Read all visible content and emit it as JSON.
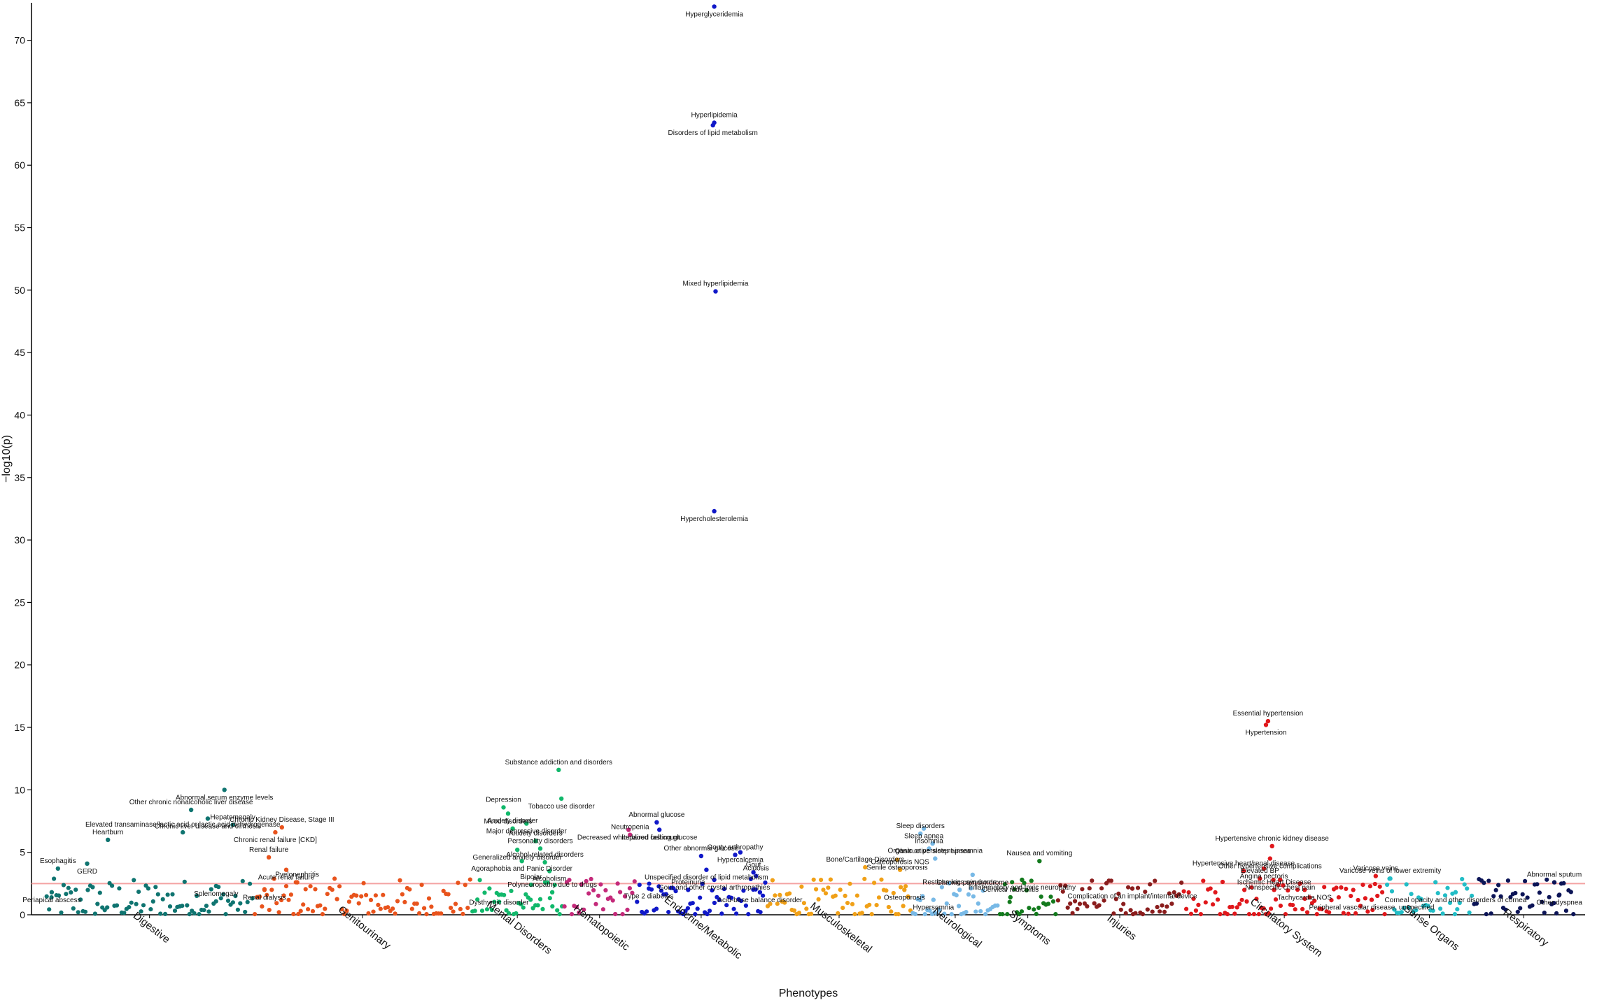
{
  "chart_data": {
    "type": "scatter",
    "title": "",
    "xlabel": "Phenotypes",
    "ylabel": "−log10(p)",
    "ylim": [
      0,
      73
    ],
    "yticks": [
      0,
      5,
      10,
      15,
      20,
      25,
      30,
      35,
      40,
      45,
      50,
      55,
      60,
      65,
      70
    ],
    "significance_threshold": 2.5,
    "threshold_color": "#f4a3a3",
    "grid": false,
    "legend": "none",
    "categories": [
      {
        "name": "Digestive",
        "color": "#0f7470",
        "n": 86
      },
      {
        "name": "Genitourinary",
        "color": "#e8531c",
        "n": 90
      },
      {
        "name": "Mental Disorders",
        "color": "#11b86b",
        "n": 38
      },
      {
        "name": "Hematopoietic",
        "color": "#c42a7a",
        "n": 30
      },
      {
        "name": "Endocrine/Metabolic",
        "color": "#1018c8",
        "n": 54
      },
      {
        "name": "Musculoskeletal",
        "color": "#f0a017",
        "n": 60
      },
      {
        "name": "Neurological",
        "color": "#78b9e6",
        "n": 36
      },
      {
        "name": "Symptoms",
        "color": "#137a1d",
        "n": 24
      },
      {
        "name": "Injuries",
        "color": "#8a1d1d",
        "n": 52
      },
      {
        "name": "Circulatory System",
        "color": "#e0171b",
        "n": 84
      },
      {
        "name": "Sense Organs",
        "color": "#22bdc6",
        "n": 36
      },
      {
        "name": "Respiratory",
        "color": "#0c1456",
        "n": 42
      }
    ],
    "labeled_points": [
      {
        "label": "Esophagitis",
        "category": "Digestive",
        "pos": 0.06,
        "y": 3.7
      },
      {
        "label": "GERD",
        "category": "Digestive",
        "pos": 0.2,
        "y": 4.1
      },
      {
        "label": "Heartburn",
        "category": "Digestive",
        "pos": 0.3,
        "y": 6.0
      },
      {
        "label": "Periapical abscess",
        "category": "Digestive",
        "pos": 0.03,
        "y": 1.8
      },
      {
        "label": "Other chronic nonalcoholic liver disease",
        "category": "Digestive",
        "pos": 0.7,
        "y": 8.4
      },
      {
        "label": "Chronic liver disease and cirrhosis",
        "category": "Digestive",
        "pos": 0.78,
        "y": 7.7
      },
      {
        "label": "Elevated transaminase/lactic acid or lactic acid dehydrogenase",
        "category": "Digestive",
        "pos": 0.66,
        "y": 6.6
      },
      {
        "label": "Abnormal serum enzyme levels",
        "category": "Digestive",
        "pos": 0.86,
        "y": 10.0
      },
      {
        "label": "Hepatomegaly",
        "category": "Digestive",
        "pos": 0.9,
        "y": 7.2
      },
      {
        "label": "Splenomegaly",
        "category": "Digestive",
        "pos": 0.82,
        "y": 2.3
      },
      {
        "label": "Chronic Kidney Disease, Stage III",
        "category": "Genitourinary",
        "pos": 0.13,
        "y": 7.0
      },
      {
        "label": "Chronic renal failure [CKD]",
        "category": "Genitourinary",
        "pos": 0.1,
        "y": 6.6
      },
      {
        "label": "Renal failure",
        "category": "Genitourinary",
        "pos": 0.07,
        "y": 4.6
      },
      {
        "label": "Acute renal failure",
        "category": "Genitourinary",
        "pos": 0.15,
        "y": 3.6
      },
      {
        "label": "Pyelonephritis",
        "category": "Genitourinary",
        "pos": 0.2,
        "y": 2.6
      },
      {
        "label": "Renal dialysis",
        "category": "Genitourinary",
        "pos": 0.05,
        "y": 2.0
      },
      {
        "label": "Depression",
        "category": "Mental Disorders",
        "pos": 0.35,
        "y": 8.6
      },
      {
        "label": "Mood disorders",
        "category": "Mental Disorders",
        "pos": 0.4,
        "y": 8.1
      },
      {
        "label": "Anxiety disorder",
        "category": "Mental Disorders",
        "pos": 0.45,
        "y": 6.9
      },
      {
        "label": "Major depressive disorder",
        "category": "Mental Disorders",
        "pos": 0.6,
        "y": 7.3
      },
      {
        "label": "Substance addiction and disorders",
        "category": "Mental Disorders",
        "pos": 0.95,
        "y": 11.6
      },
      {
        "label": "Tobacco use disorder",
        "category": "Mental Disorders",
        "pos": 0.98,
        "y": 9.3
      },
      {
        "label": "Anxiety disorders",
        "category": "Mental Disorders",
        "pos": 0.7,
        "y": 5.9
      },
      {
        "label": "Generalized anxiety disorder",
        "category": "Mental Disorders",
        "pos": 0.5,
        "y": 5.2
      },
      {
        "label": "Personality disorders",
        "category": "Mental Disorders",
        "pos": 0.75,
        "y": 5.3
      },
      {
        "label": "Agoraphobia and Panic Disorder",
        "category": "Mental Disorders",
        "pos": 0.55,
        "y": 4.3
      },
      {
        "label": "Alcohol-related disorders",
        "category": "Mental Disorders",
        "pos": 0.8,
        "y": 4.2
      },
      {
        "label": "Alcoholism",
        "category": "Mental Disorders",
        "pos": 0.85,
        "y": 3.5
      },
      {
        "label": "Bipolar",
        "category": "Mental Disorders",
        "pos": 0.65,
        "y": 2.4
      },
      {
        "label": "Dysthymic disorder",
        "category": "Mental Disorders",
        "pos": 0.3,
        "y": 1.6
      },
      {
        "label": "Polyneuropathy due to drugs",
        "category": "Mental Disorders",
        "pos": 0.88,
        "y": 1.8
      },
      {
        "label": "Decreased white blood cell count",
        "category": "Hematopoietic",
        "pos": 0.9,
        "y": 6.8
      },
      {
        "label": "Neutropenia",
        "category": "Hematopoietic",
        "pos": 0.92,
        "y": 6.4
      },
      {
        "label": "Hyperglyceridemia",
        "category": "Endocrine/Metabolic",
        "pos": 0.6,
        "y": 72.7
      },
      {
        "label": "Hyperlipidemia",
        "category": "Endocrine/Metabolic",
        "pos": 0.6,
        "y": 63.4
      },
      {
        "label": "Disorders of lipid metabolism",
        "category": "Endocrine/Metabolic",
        "pos": 0.59,
        "y": 63.2
      },
      {
        "label": "Mixed hyperlipidemia",
        "category": "Endocrine/Metabolic",
        "pos": 0.61,
        "y": 49.9
      },
      {
        "label": "Hypercholesterolemia",
        "category": "Endocrine/Metabolic",
        "pos": 0.6,
        "y": 32.3
      },
      {
        "label": "Abnormal glucose",
        "category": "Endocrine/Metabolic",
        "pos": 0.16,
        "y": 7.4
      },
      {
        "label": "Impaired fasting glucose",
        "category": "Endocrine/Metabolic",
        "pos": 0.18,
        "y": 6.8
      },
      {
        "label": "Other abnormal glucose",
        "category": "Endocrine/Metabolic",
        "pos": 0.5,
        "y": 4.7
      },
      {
        "label": "Hypercalcemia",
        "category": "Endocrine/Metabolic",
        "pos": 0.8,
        "y": 5.0
      },
      {
        "label": "Gouty arthropathy",
        "category": "Endocrine/Metabolic",
        "pos": 0.76,
        "y": 4.8
      },
      {
        "label": "Unspecified disorder of lipid metabolism",
        "category": "Endocrine/Metabolic",
        "pos": 0.54,
        "y": 3.6
      },
      {
        "label": "Gout",
        "category": "Endocrine/Metabolic",
        "pos": 0.9,
        "y": 3.4
      },
      {
        "label": "Gout and other crystal arthropathies",
        "category": "Endocrine/Metabolic",
        "pos": 0.6,
        "y": 2.8
      },
      {
        "label": "Acidosis",
        "category": "Endocrine/Metabolic",
        "pos": 0.92,
        "y": 3.1
      },
      {
        "label": "Type 2 diabetes",
        "category": "Endocrine/Metabolic",
        "pos": 0.1,
        "y": 2.1
      },
      {
        "label": "Proteinuria",
        "category": "Endocrine/Metabolic",
        "pos": 0.4,
        "y": 2.0
      },
      {
        "label": "Acid-base balance disorder",
        "category": "Endocrine/Metabolic",
        "pos": 0.95,
        "y": 1.8
      },
      {
        "label": "Bone/Cartilage Disorders",
        "category": "Musculoskeletal",
        "pos": 0.68,
        "y": 3.8
      },
      {
        "label": "Senile osteoporosis",
        "category": "Musculoskeletal",
        "pos": 0.9,
        "y": 4.4
      },
      {
        "label": "Osteoporosis NOS",
        "category": "Musculoskeletal",
        "pos": 0.92,
        "y": 3.6
      },
      {
        "label": "Osteoporosis",
        "category": "Musculoskeletal",
        "pos": 0.95,
        "y": 2.0
      },
      {
        "label": "Sleep disorders",
        "category": "Neurological",
        "pos": 0.1,
        "y": 6.5
      },
      {
        "label": "Sleep apnea",
        "category": "Neurological",
        "pos": 0.14,
        "y": 6.9
      },
      {
        "label": "Insomnia",
        "category": "Neurological",
        "pos": 0.2,
        "y": 5.3
      },
      {
        "label": "Obstructive sleep apnea",
        "category": "Neurological",
        "pos": 0.24,
        "y": 5.7
      },
      {
        "label": "Organic or persistent insomnia",
        "category": "Neurological",
        "pos": 0.27,
        "y": 4.5
      },
      {
        "label": "Chronic pain syndrome",
        "category": "Neurological",
        "pos": 0.7,
        "y": 3.2
      },
      {
        "label": "Restless legs syndrome",
        "category": "Neurological",
        "pos": 0.55,
        "y": 2.0
      },
      {
        "label": "Hypersomnia",
        "category": "Neurological",
        "pos": 0.25,
        "y": 1.2
      },
      {
        "label": "Nausea and vomiting",
        "category": "Symptoms",
        "pos": 0.7,
        "y": 4.3
      },
      {
        "label": "Inflammatory and toxic neuropathy",
        "category": "Symptoms",
        "pos": 0.4,
        "y": 2.8
      },
      {
        "label": "Cervical radiculitis",
        "category": "Symptoms",
        "pos": 0.2,
        "y": 1.4
      },
      {
        "label": "Complication of an implant/internal device",
        "category": "Injuries",
        "pos": 0.6,
        "y": 2.1
      },
      {
        "label": "Essential hypertension",
        "category": "Circulatory System",
        "pos": 0.42,
        "y": 15.5
      },
      {
        "label": "Hypertension",
        "category": "Circulatory System",
        "pos": 0.41,
        "y": 15.2
      },
      {
        "label": "Hypertensive chronic kidney disease",
        "category": "Circulatory System",
        "pos": 0.44,
        "y": 5.5
      },
      {
        "label": "Other hypertensive complications",
        "category": "Circulatory System",
        "pos": 0.43,
        "y": 4.5
      },
      {
        "label": "Hypertensive heart/renal disease",
        "category": "Circulatory System",
        "pos": 0.3,
        "y": 3.5
      },
      {
        "label": "Angina pectoris",
        "category": "Circulatory System",
        "pos": 0.4,
        "y": 3.7
      },
      {
        "label": "Elevated BP",
        "category": "Circulatory System",
        "pos": 0.38,
        "y": 2.9
      },
      {
        "label": "Nonspecific chest pain",
        "category": "Circulatory System",
        "pos": 0.48,
        "y": 2.8
      },
      {
        "label": "Ischemic Heart Disease",
        "category": "Circulatory System",
        "pos": 0.45,
        "y": 2.0
      },
      {
        "label": "Tachycardia NOS",
        "category": "Circulatory System",
        "pos": 0.6,
        "y": 2.0
      },
      {
        "label": "Varicose veins",
        "category": "Circulatory System",
        "pos": 0.95,
        "y": 3.1
      },
      {
        "label": "Peripheral vascular disease, unspecified",
        "category": "Circulatory System",
        "pos": 0.93,
        "y": 1.2
      },
      {
        "label": "Varicose veins of lower extremity",
        "category": "Sense Organs",
        "pos": 0.05,
        "y": 2.9
      },
      {
        "label": "Corneal opacity and other disorders of cornea",
        "category": "Sense Organs",
        "pos": 0.8,
        "y": 1.8
      },
      {
        "label": "Abnormal sputum",
        "category": "Respiratory",
        "pos": 0.8,
        "y": 2.6
      },
      {
        "label": "Other dyspnea",
        "category": "Respiratory",
        "pos": 0.85,
        "y": 1.6
      }
    ]
  }
}
